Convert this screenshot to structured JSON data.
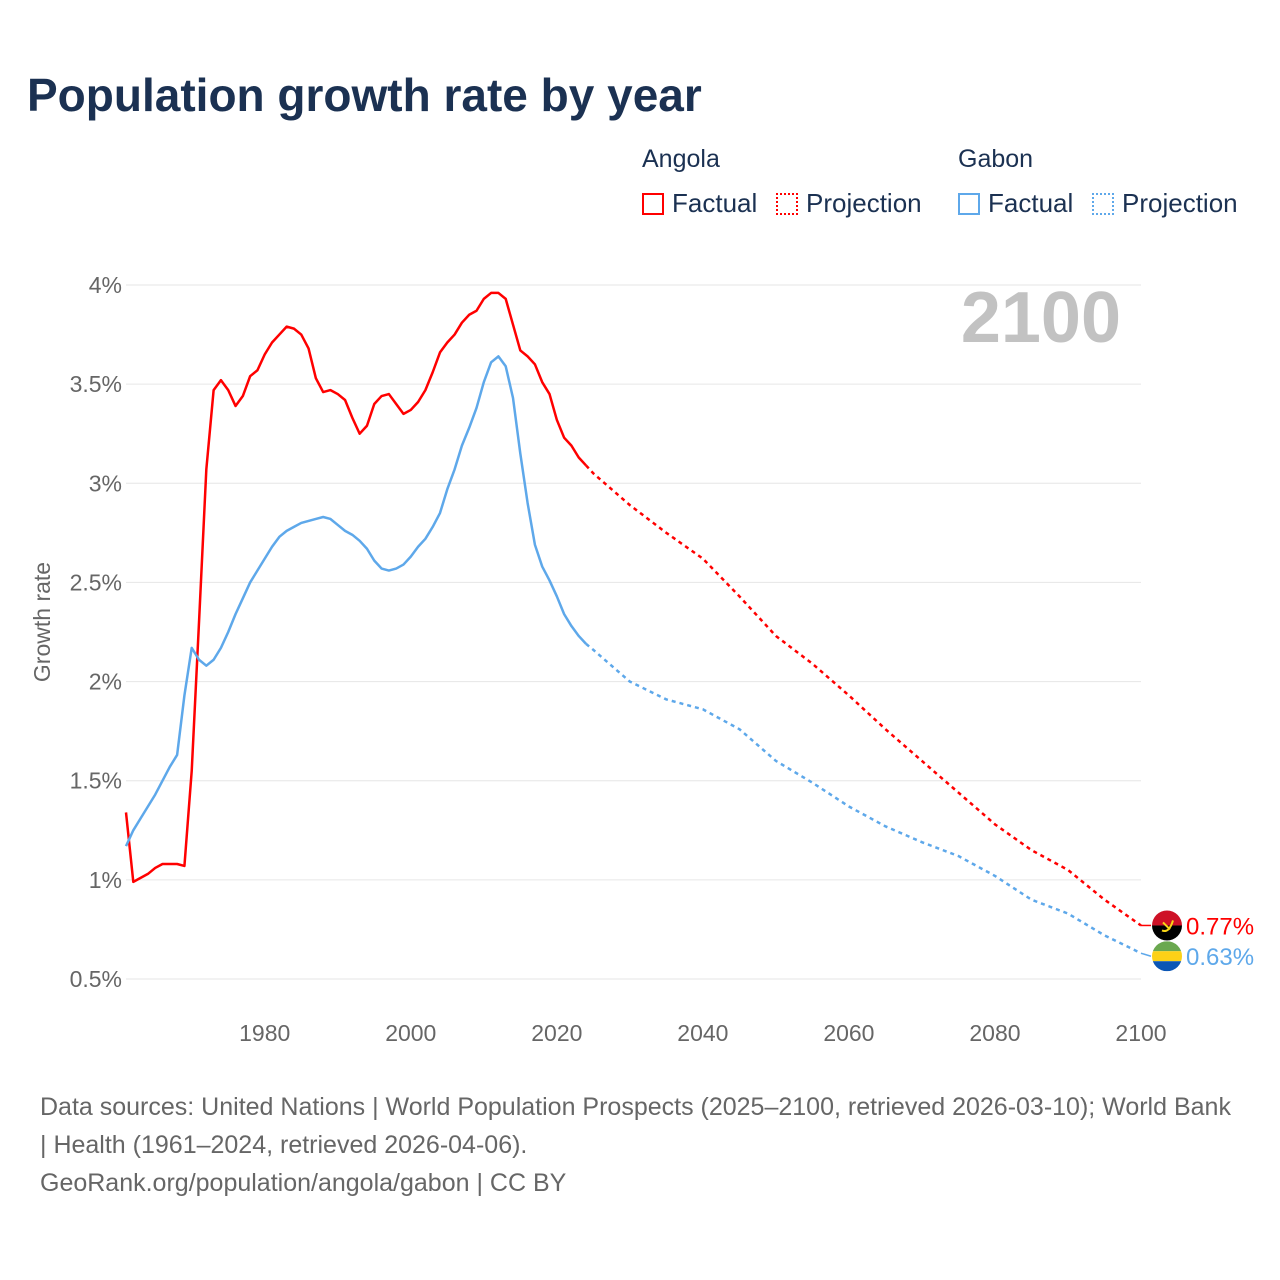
{
  "title": "Population growth rate by year",
  "legend": {
    "groups": [
      {
        "name": "Angola",
        "factual": "Factual",
        "projection": "Projection",
        "color": "#ff0000"
      },
      {
        "name": "Gabon",
        "factual": "Factual",
        "projection": "Projection",
        "color": "#5ea8ea"
      }
    ]
  },
  "year_label": "2100",
  "footer": {
    "sources": "Data sources: United Nations | World Population Prospects (2025–2100, retrieved 2026-03-10); World Bank | Health (1961–2024, retrieved 2026-04-06).",
    "credit": "GeoRank.org/population/angola/gabon | CC BY"
  },
  "chart_data": {
    "type": "line",
    "title": "Population growth rate by year",
    "xlabel": "",
    "ylabel": "Growth rate",
    "xlim": [
      1961,
      2100
    ],
    "ylim": [
      0.5,
      4
    ],
    "grid": true,
    "x_ticks": [
      1980,
      2000,
      2020,
      2040,
      2060,
      2080,
      2100
    ],
    "x_tick_labels": [
      "1980",
      "2000",
      "2020",
      "2040",
      "2060",
      "2080",
      "2100"
    ],
    "y_ticks": [
      0.5,
      1,
      1.5,
      2,
      2.5,
      3,
      3.5,
      4
    ],
    "y_tick_labels": [
      "0.5%",
      "1%",
      "1.5%",
      "2%",
      "2.5%",
      "3%",
      "3.5%",
      "4%"
    ],
    "legend_position": "top-right",
    "series": [
      {
        "name": "Angola",
        "color": "#ff0000",
        "end_label": "0.77%",
        "flag": "angola-flag",
        "factual": {
          "x_start": 1961,
          "values": [
            1.34,
            0.99,
            1.01,
            1.03,
            1.06,
            1.08,
            1.08,
            1.08,
            1.07,
            1.55,
            2.3,
            3.07,
            3.47,
            3.52,
            3.47,
            3.39,
            3.44,
            3.54,
            3.57,
            3.65,
            3.71,
            3.75,
            3.79,
            3.78,
            3.75,
            3.68,
            3.53,
            3.46,
            3.47,
            3.45,
            3.42,
            3.33,
            3.25,
            3.29,
            3.4,
            3.44,
            3.45,
            3.4,
            3.35,
            3.37,
            3.41,
            3.47,
            3.56,
            3.66,
            3.71,
            3.75,
            3.81,
            3.85,
            3.87,
            3.93,
            3.96,
            3.96,
            3.93,
            3.8,
            3.67,
            3.64,
            3.6,
            3.51,
            3.45,
            3.32,
            3.23,
            3.19,
            3.13,
            3.09
          ]
        },
        "projection": {
          "x": [
            2024,
            2025,
            2030,
            2035,
            2040,
            2045,
            2050,
            2055,
            2060,
            2065,
            2070,
            2075,
            2080,
            2085,
            2090,
            2095,
            2100
          ],
          "values": [
            3.09,
            3.05,
            2.89,
            2.75,
            2.62,
            2.43,
            2.23,
            2.09,
            1.93,
            1.76,
            1.6,
            1.44,
            1.28,
            1.15,
            1.05,
            0.9,
            0.77
          ]
        }
      },
      {
        "name": "Gabon",
        "color": "#5ea8ea",
        "end_label": "0.63%",
        "flag": "gabon-flag",
        "factual": {
          "x_start": 1961,
          "values": [
            1.17,
            1.25,
            1.31,
            1.37,
            1.43,
            1.5,
            1.57,
            1.63,
            1.93,
            2.17,
            2.11,
            2.08,
            2.11,
            2.17,
            2.25,
            2.34,
            2.42,
            2.5,
            2.56,
            2.62,
            2.68,
            2.73,
            2.76,
            2.78,
            2.8,
            2.81,
            2.82,
            2.83,
            2.82,
            2.79,
            2.76,
            2.74,
            2.71,
            2.67,
            2.61,
            2.57,
            2.56,
            2.57,
            2.59,
            2.63,
            2.68,
            2.72,
            2.78,
            2.85,
            2.97,
            3.07,
            3.19,
            3.28,
            3.38,
            3.51,
            3.61,
            3.64,
            3.59,
            3.43,
            3.15,
            2.9,
            2.69,
            2.58,
            2.51,
            2.43,
            2.34,
            2.28,
            2.23,
            2.19
          ]
        },
        "projection": {
          "x": [
            2024,
            2025,
            2030,
            2035,
            2040,
            2045,
            2050,
            2055,
            2060,
            2065,
            2070,
            2075,
            2080,
            2085,
            2090,
            2095,
            2100
          ],
          "values": [
            2.19,
            2.16,
            2.0,
            1.91,
            1.86,
            1.76,
            1.6,
            1.49,
            1.37,
            1.27,
            1.19,
            1.12,
            1.02,
            0.9,
            0.83,
            0.72,
            0.63
          ]
        }
      }
    ]
  }
}
